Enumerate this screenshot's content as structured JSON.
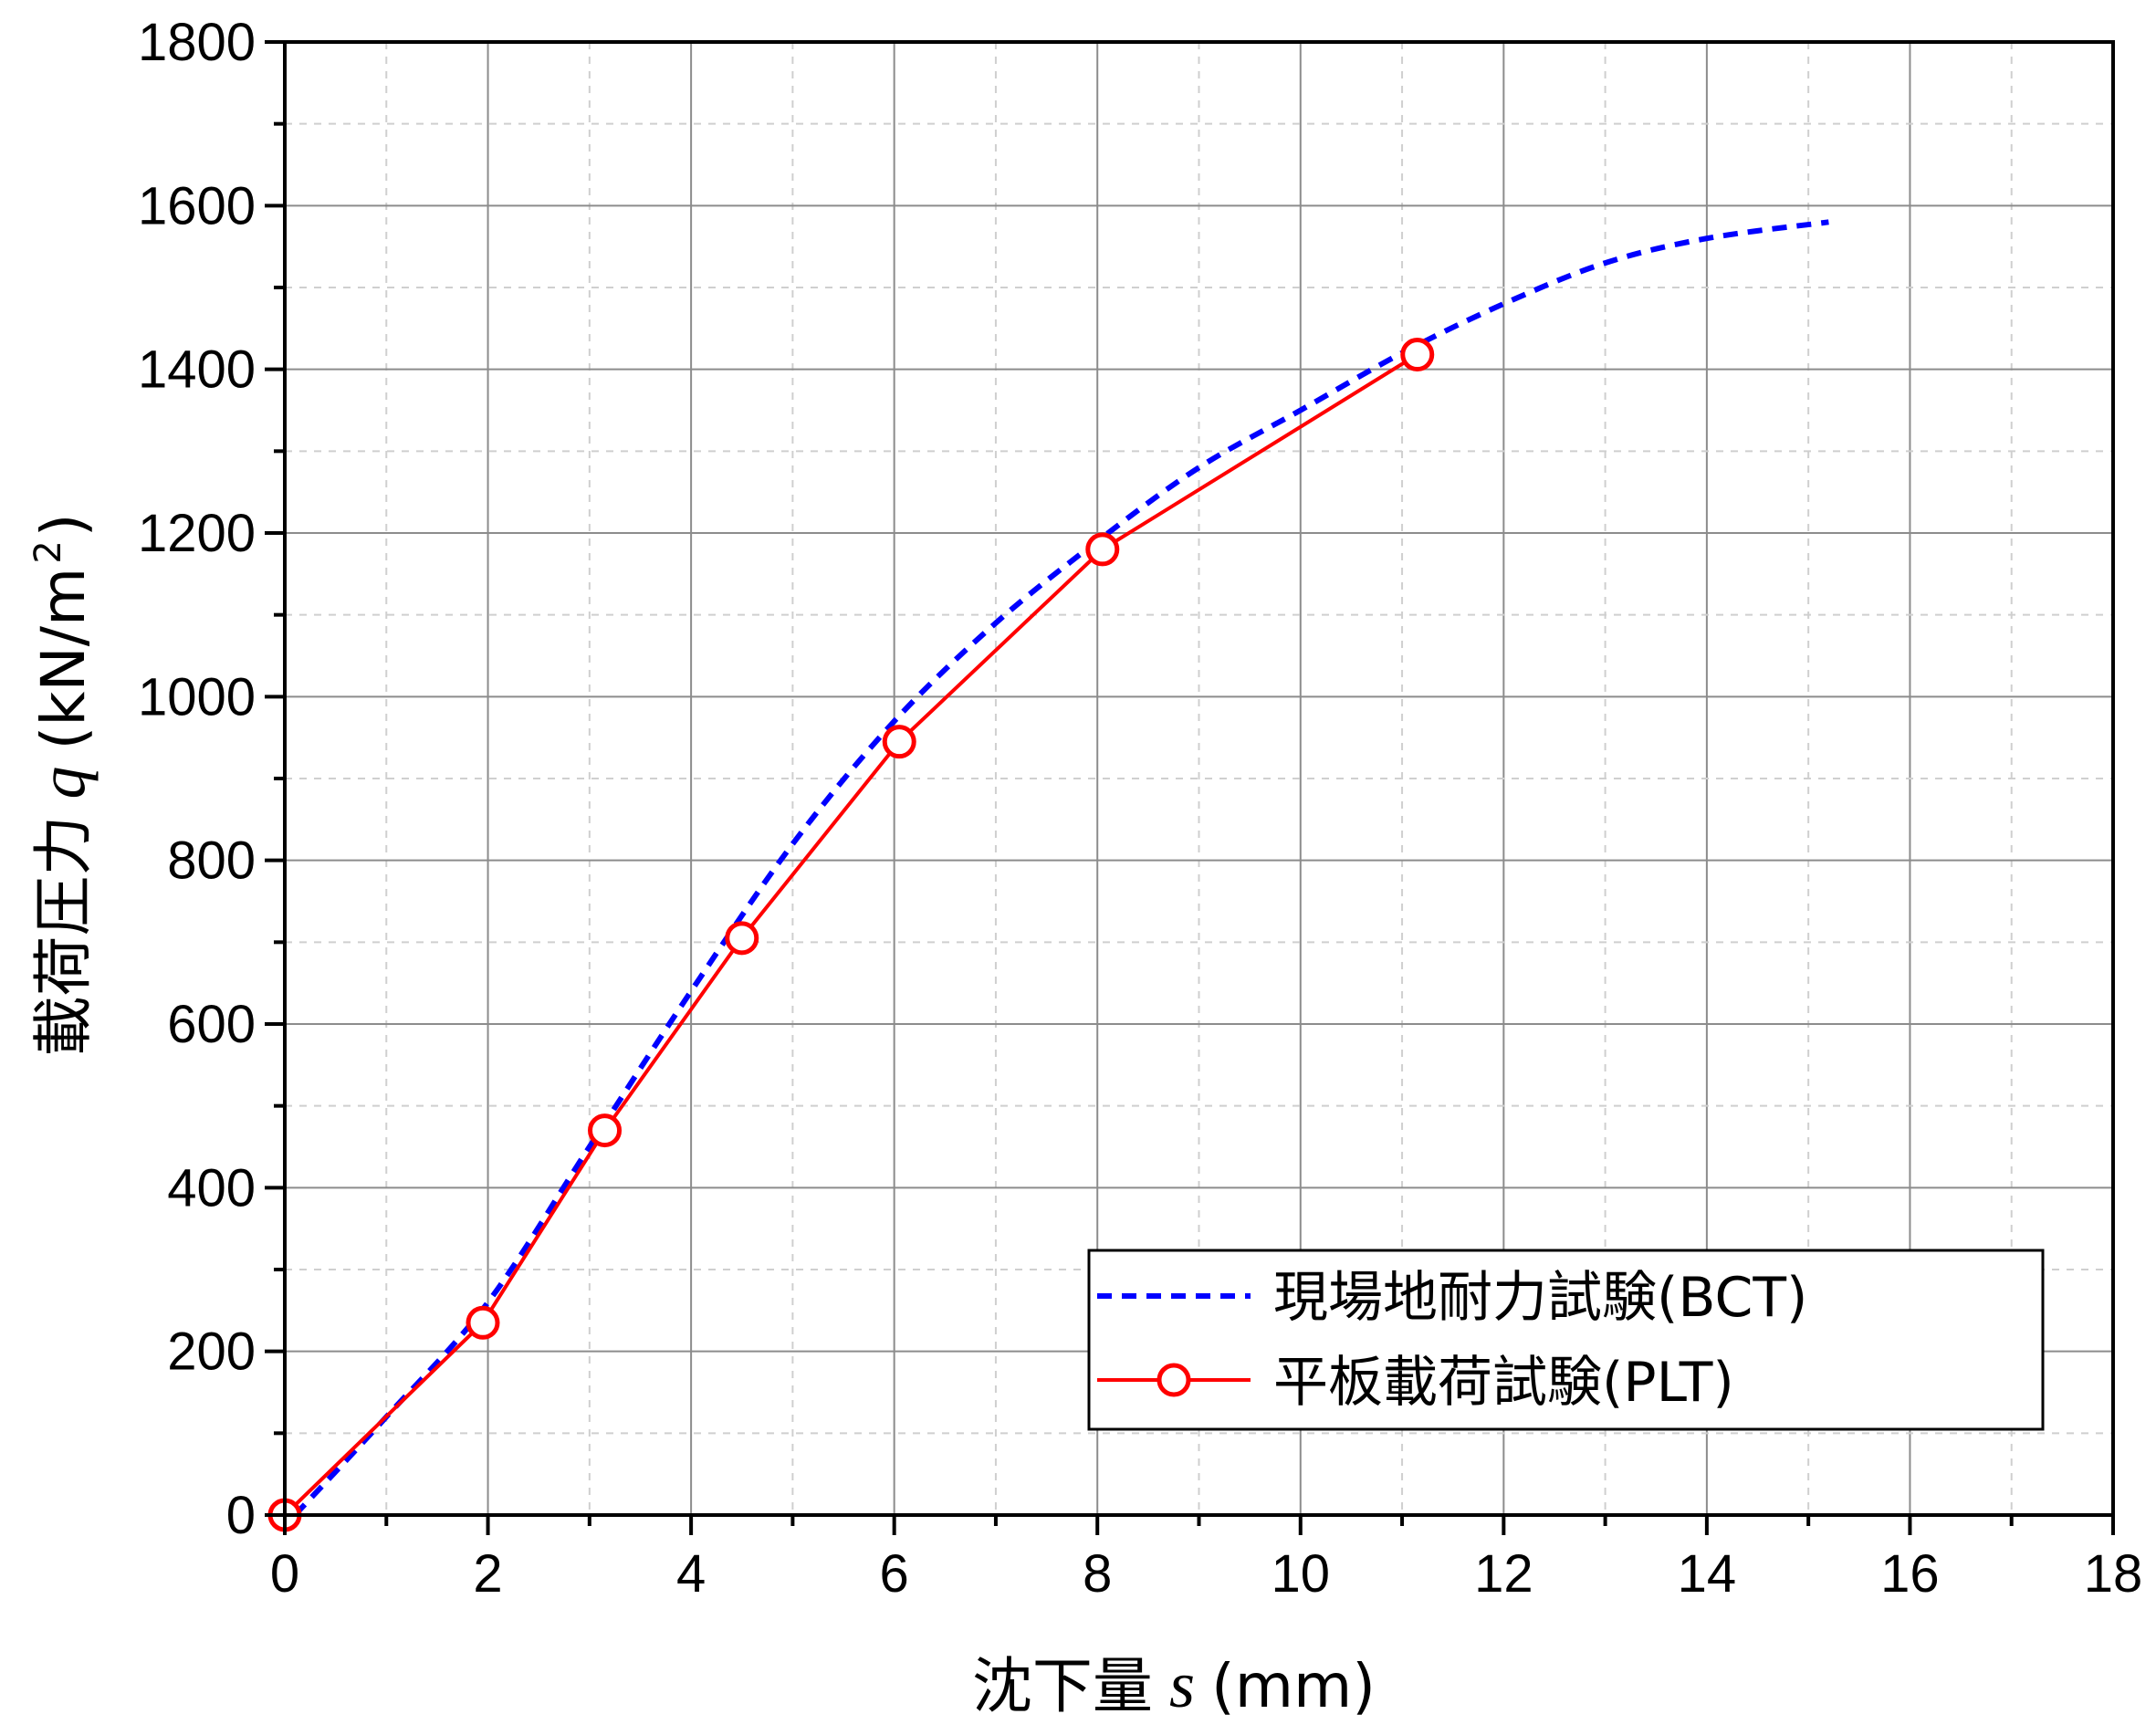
{
  "chart_data": {
    "type": "line",
    "xlabel": {
      "prefix": "沈下量",
      "var": "s",
      "unit": "(mm)"
    },
    "ylabel": {
      "prefix": "載荷圧力",
      "var": "q",
      "unit": "(kN/m",
      "unit_sup": "2",
      "unit_close": ")"
    },
    "xlim": [
      0,
      18
    ],
    "ylim": [
      0,
      1800
    ],
    "xticks": [
      0,
      2,
      4,
      6,
      8,
      10,
      12,
      14,
      16,
      18
    ],
    "yticks": [
      0,
      200,
      400,
      600,
      800,
      1000,
      1200,
      1400,
      1600,
      1800
    ],
    "grid": true,
    "legend_position": "bottom-right",
    "series": [
      {
        "name": "現場地耐力試験(BCT)",
        "style": "dashed",
        "color": "#0000ff",
        "x": [
          0.1,
          1.0,
          2.0,
          3.0,
          4.0,
          5.0,
          6.0,
          7.0,
          8.0,
          9.0,
          10.0,
          11.0,
          12.0,
          13.0,
          14.0,
          15.2
        ],
        "y": [
          0,
          120,
          260,
          450,
          640,
          820,
          970,
          1090,
          1190,
          1280,
          1350,
          1420,
          1480,
          1530,
          1560,
          1580
        ]
      },
      {
        "name": "平板載荷試験(PLT)",
        "style": "solid",
        "marker": "open-circle",
        "color": "#ff0000",
        "x": [
          0.0,
          1.95,
          3.15,
          4.5,
          6.05,
          8.05,
          11.15
        ],
        "y": [
          0,
          235,
          470,
          705,
          945,
          1180,
          1418
        ]
      }
    ]
  }
}
